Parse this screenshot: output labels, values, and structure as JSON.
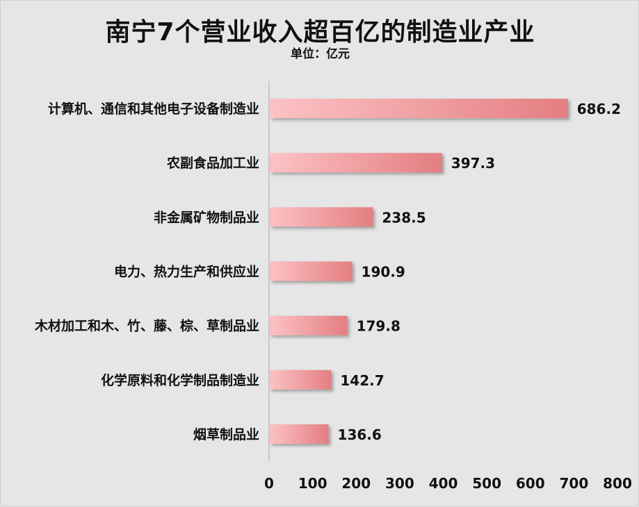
{
  "chart_data": {
    "type": "bar",
    "orientation": "horizontal",
    "title": "南宁7个营业收入超百亿的制造业产业",
    "subtitle": "单位：亿元",
    "categories": [
      "计算机、通信和其他电子设备制造业",
      "农副食品加工业",
      "非金属矿物制品业",
      "电力、热力生产和供应业",
      "木材加工和木、竹、藤、棕、草制品业",
      "化学原料和化学制品制造业",
      "烟草制品业"
    ],
    "values": [
      686.2,
      397.3,
      238.5,
      190.9,
      179.8,
      142.7,
      136.6
    ],
    "value_labels": [
      "686.2",
      "397.3",
      "238.5",
      "190.9",
      "179.8",
      "142.7",
      "136.6"
    ],
    "xlim": [
      0,
      800
    ],
    "x_ticks": [
      "0",
      "100",
      "200",
      "300",
      "400",
      "500",
      "600",
      "700",
      "800"
    ],
    "x_tick_values": [
      0,
      100,
      200,
      300,
      400,
      500,
      600,
      700,
      800
    ],
    "grid": false,
    "bar_color_start": "#fcc2c4",
    "bar_color_end": "#e47e82"
  }
}
